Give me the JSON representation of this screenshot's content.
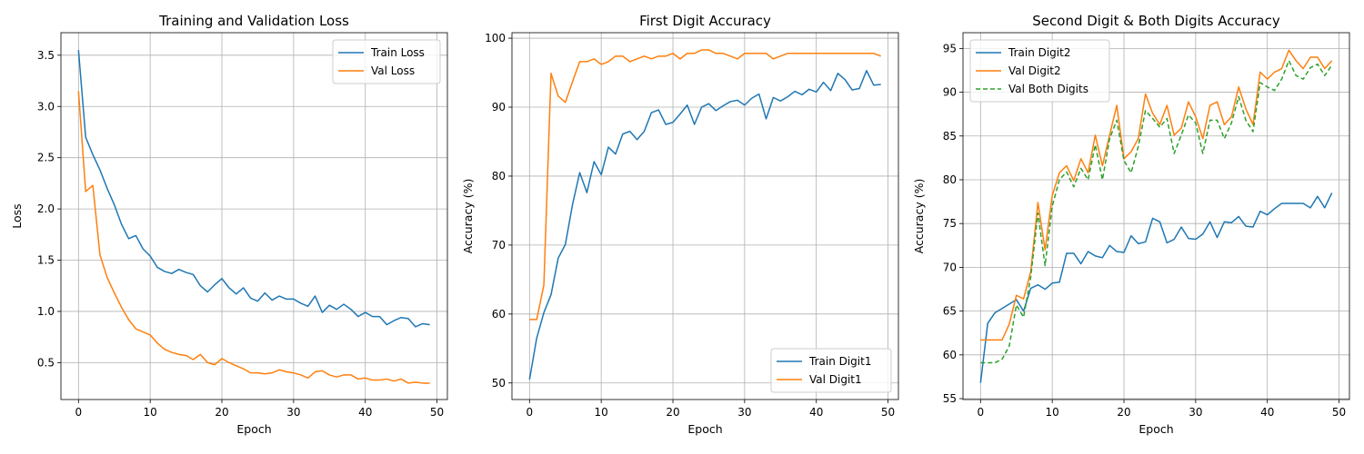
{
  "chart_data": [
    {
      "type": "line",
      "title": "Training and Validation Loss",
      "xlabel": "Epoch",
      "ylabel": "Loss",
      "xlim": [
        -2.45,
        51.45
      ],
      "ylim": [
        0.14,
        3.72
      ],
      "xticks": [
        0,
        10,
        20,
        30,
        40,
        50
      ],
      "yticks": [
        0.5,
        1.0,
        1.5,
        2.0,
        2.5,
        3.0,
        3.5
      ],
      "ytick_format": "fixed1",
      "grid": true,
      "legend_position": "top-right",
      "x": [
        0,
        1,
        2,
        3,
        4,
        5,
        6,
        7,
        8,
        9,
        10,
        11,
        12,
        13,
        14,
        15,
        16,
        17,
        18,
        19,
        20,
        21,
        22,
        23,
        24,
        25,
        26,
        27,
        28,
        29,
        30,
        31,
        32,
        33,
        34,
        35,
        36,
        37,
        38,
        39,
        40,
        41,
        42,
        43,
        44,
        45,
        46,
        47,
        48,
        49
      ],
      "series": [
        {
          "name": "Train Loss",
          "color": "#1f77b4",
          "dash": "",
          "values": [
            3.55,
            2.7,
            2.53,
            2.38,
            2.2,
            2.04,
            1.85,
            1.71,
            1.74,
            1.61,
            1.54,
            1.43,
            1.39,
            1.37,
            1.41,
            1.38,
            1.36,
            1.25,
            1.19,
            1.26,
            1.32,
            1.23,
            1.17,
            1.23,
            1.13,
            1.1,
            1.18,
            1.11,
            1.15,
            1.12,
            1.12,
            1.08,
            1.05,
            1.15,
            0.99,
            1.06,
            1.02,
            1.07,
            1.02,
            0.95,
            0.99,
            0.95,
            0.95,
            0.87,
            0.91,
            0.94,
            0.93,
            0.85,
            0.88,
            0.87
          ]
        },
        {
          "name": "Val Loss",
          "color": "#ff7f0e",
          "dash": "",
          "values": [
            3.15,
            2.17,
            2.23,
            1.55,
            1.33,
            1.18,
            1.04,
            0.92,
            0.83,
            0.8,
            0.77,
            0.69,
            0.63,
            0.6,
            0.58,
            0.57,
            0.53,
            0.58,
            0.5,
            0.48,
            0.54,
            0.5,
            0.47,
            0.44,
            0.4,
            0.4,
            0.39,
            0.4,
            0.43,
            0.41,
            0.4,
            0.38,
            0.35,
            0.41,
            0.42,
            0.38,
            0.36,
            0.38,
            0.38,
            0.34,
            0.35,
            0.33,
            0.33,
            0.34,
            0.32,
            0.34,
            0.3,
            0.31,
            0.3,
            0.3
          ]
        }
      ]
    },
    {
      "type": "line",
      "title": "First Digit Accuracy",
      "xlabel": "Epoch",
      "ylabel": "Accuracy (%)",
      "xlim": [
        -2.45,
        51.45
      ],
      "ylim": [
        47.6,
        100.8
      ],
      "xticks": [
        0,
        10,
        20,
        30,
        40,
        50
      ],
      "yticks": [
        50,
        60,
        70,
        80,
        90,
        100
      ],
      "ytick_format": "int",
      "grid": true,
      "legend_position": "bottom-right",
      "x": [
        0,
        1,
        2,
        3,
        4,
        5,
        6,
        7,
        8,
        9,
        10,
        11,
        12,
        13,
        14,
        15,
        16,
        17,
        18,
        19,
        20,
        21,
        22,
        23,
        24,
        25,
        26,
        27,
        28,
        29,
        30,
        31,
        32,
        33,
        34,
        35,
        36,
        37,
        38,
        39,
        40,
        41,
        42,
        43,
        44,
        45,
        46,
        47,
        48,
        49
      ],
      "series": [
        {
          "name": "Train Digit1",
          "color": "#1f77b4",
          "dash": "",
          "values": [
            50.5,
            56.5,
            60.2,
            62.8,
            68.1,
            70.1,
            75.9,
            80.5,
            77.6,
            82.1,
            80.2,
            84.2,
            83.2,
            86.1,
            86.5,
            85.3,
            86.5,
            89.2,
            89.6,
            87.5,
            87.8,
            89.0,
            90.3,
            87.5,
            90.0,
            90.5,
            89.5,
            90.2,
            90.8,
            91.0,
            90.3,
            91.3,
            91.9,
            88.3,
            91.4,
            90.9,
            91.5,
            92.3,
            91.8,
            92.6,
            92.2,
            93.6,
            92.4,
            94.9,
            94.0,
            92.5,
            92.7,
            95.3,
            93.2,
            93.3
          ]
        },
        {
          "name": "Val Digit1",
          "color": "#ff7f0e",
          "dash": "",
          "values": [
            59.2,
            59.2,
            64.2,
            94.9,
            91.6,
            90.7,
            93.7,
            96.6,
            96.6,
            97.0,
            96.2,
            96.6,
            97.4,
            97.4,
            96.6,
            97.0,
            97.4,
            97.0,
            97.4,
            97.4,
            97.8,
            97.0,
            97.8,
            97.8,
            98.3,
            98.3,
            97.8,
            97.8,
            97.4,
            97.0,
            97.8,
            97.8,
            97.8,
            97.8,
            97.0,
            97.4,
            97.8,
            97.8,
            97.8,
            97.8,
            97.8,
            97.8,
            97.8,
            97.8,
            97.8,
            97.8,
            97.8,
            97.8,
            97.8,
            97.4
          ]
        }
      ]
    },
    {
      "type": "line",
      "title": "Second Digit & Both Digits Accuracy",
      "xlabel": "Epoch",
      "ylabel": "Accuracy (%)",
      "xlim": [
        -2.45,
        51.45
      ],
      "ylim": [
        54.9,
        96.8
      ],
      "xticks": [
        0,
        10,
        20,
        30,
        40,
        50
      ],
      "yticks": [
        55,
        60,
        65,
        70,
        75,
        80,
        85,
        90,
        95
      ],
      "ytick_format": "int",
      "grid": true,
      "legend_position": "top-left",
      "x": [
        0,
        1,
        2,
        3,
        4,
        5,
        6,
        7,
        8,
        9,
        10,
        11,
        12,
        13,
        14,
        15,
        16,
        17,
        18,
        19,
        20,
        21,
        22,
        23,
        24,
        25,
        26,
        27,
        28,
        29,
        30,
        31,
        32,
        33,
        34,
        35,
        36,
        37,
        38,
        39,
        40,
        41,
        42,
        43,
        44,
        45,
        46,
        47,
        48,
        49
      ],
      "series": [
        {
          "name": "Train Digit2",
          "color": "#1f77b4",
          "dash": "",
          "values": [
            56.8,
            63.6,
            64.8,
            65.3,
            65.8,
            66.3,
            65.0,
            67.6,
            68.0,
            67.5,
            68.2,
            68.3,
            71.6,
            71.6,
            70.4,
            71.8,
            71.3,
            71.1,
            72.5,
            71.8,
            71.7,
            73.6,
            72.7,
            72.9,
            75.6,
            75.2,
            72.8,
            73.2,
            74.6,
            73.3,
            73.2,
            73.8,
            75.2,
            73.4,
            75.2,
            75.1,
            75.8,
            74.7,
            74.6,
            76.4,
            76.0,
            76.7,
            77.3,
            77.3,
            77.3,
            77.3,
            76.8,
            78.1,
            76.8,
            78.5
          ]
        },
        {
          "name": "Val Digit2",
          "color": "#ff7f0e",
          "dash": "",
          "values": [
            61.7,
            61.7,
            61.7,
            61.7,
            63.5,
            66.8,
            66.4,
            69.5,
            77.4,
            72.0,
            78.2,
            80.8,
            81.6,
            79.9,
            82.4,
            80.8,
            85.1,
            81.6,
            85.1,
            88.5,
            82.4,
            83.2,
            84.7,
            89.8,
            87.6,
            86.3,
            88.5,
            85.1,
            85.9,
            88.9,
            87.2,
            84.7,
            88.5,
            88.9,
            86.3,
            87.2,
            90.6,
            88.1,
            86.3,
            92.3,
            91.5,
            92.3,
            92.7,
            94.8,
            93.6,
            92.7,
            94.0,
            94.0,
            92.7,
            93.6
          ]
        },
        {
          "name": "Val Both Digits",
          "color": "#2ca02c",
          "dash": "5,3",
          "values": [
            59.1,
            59.1,
            59.1,
            59.5,
            61.0,
            65.7,
            64.3,
            68.9,
            76.2,
            70.2,
            77.0,
            80.0,
            80.9,
            79.2,
            81.3,
            80.0,
            84.0,
            80.0,
            84.7,
            86.8,
            82.2,
            80.8,
            83.8,
            87.9,
            87.0,
            86.0,
            87.0,
            83.0,
            85.1,
            87.4,
            86.5,
            83.0,
            86.8,
            86.8,
            84.7,
            86.5,
            89.5,
            86.8,
            85.5,
            91.1,
            90.6,
            90.2,
            91.5,
            93.6,
            91.9,
            91.5,
            92.8,
            93.2,
            91.9,
            93.1
          ]
        }
      ]
    }
  ]
}
